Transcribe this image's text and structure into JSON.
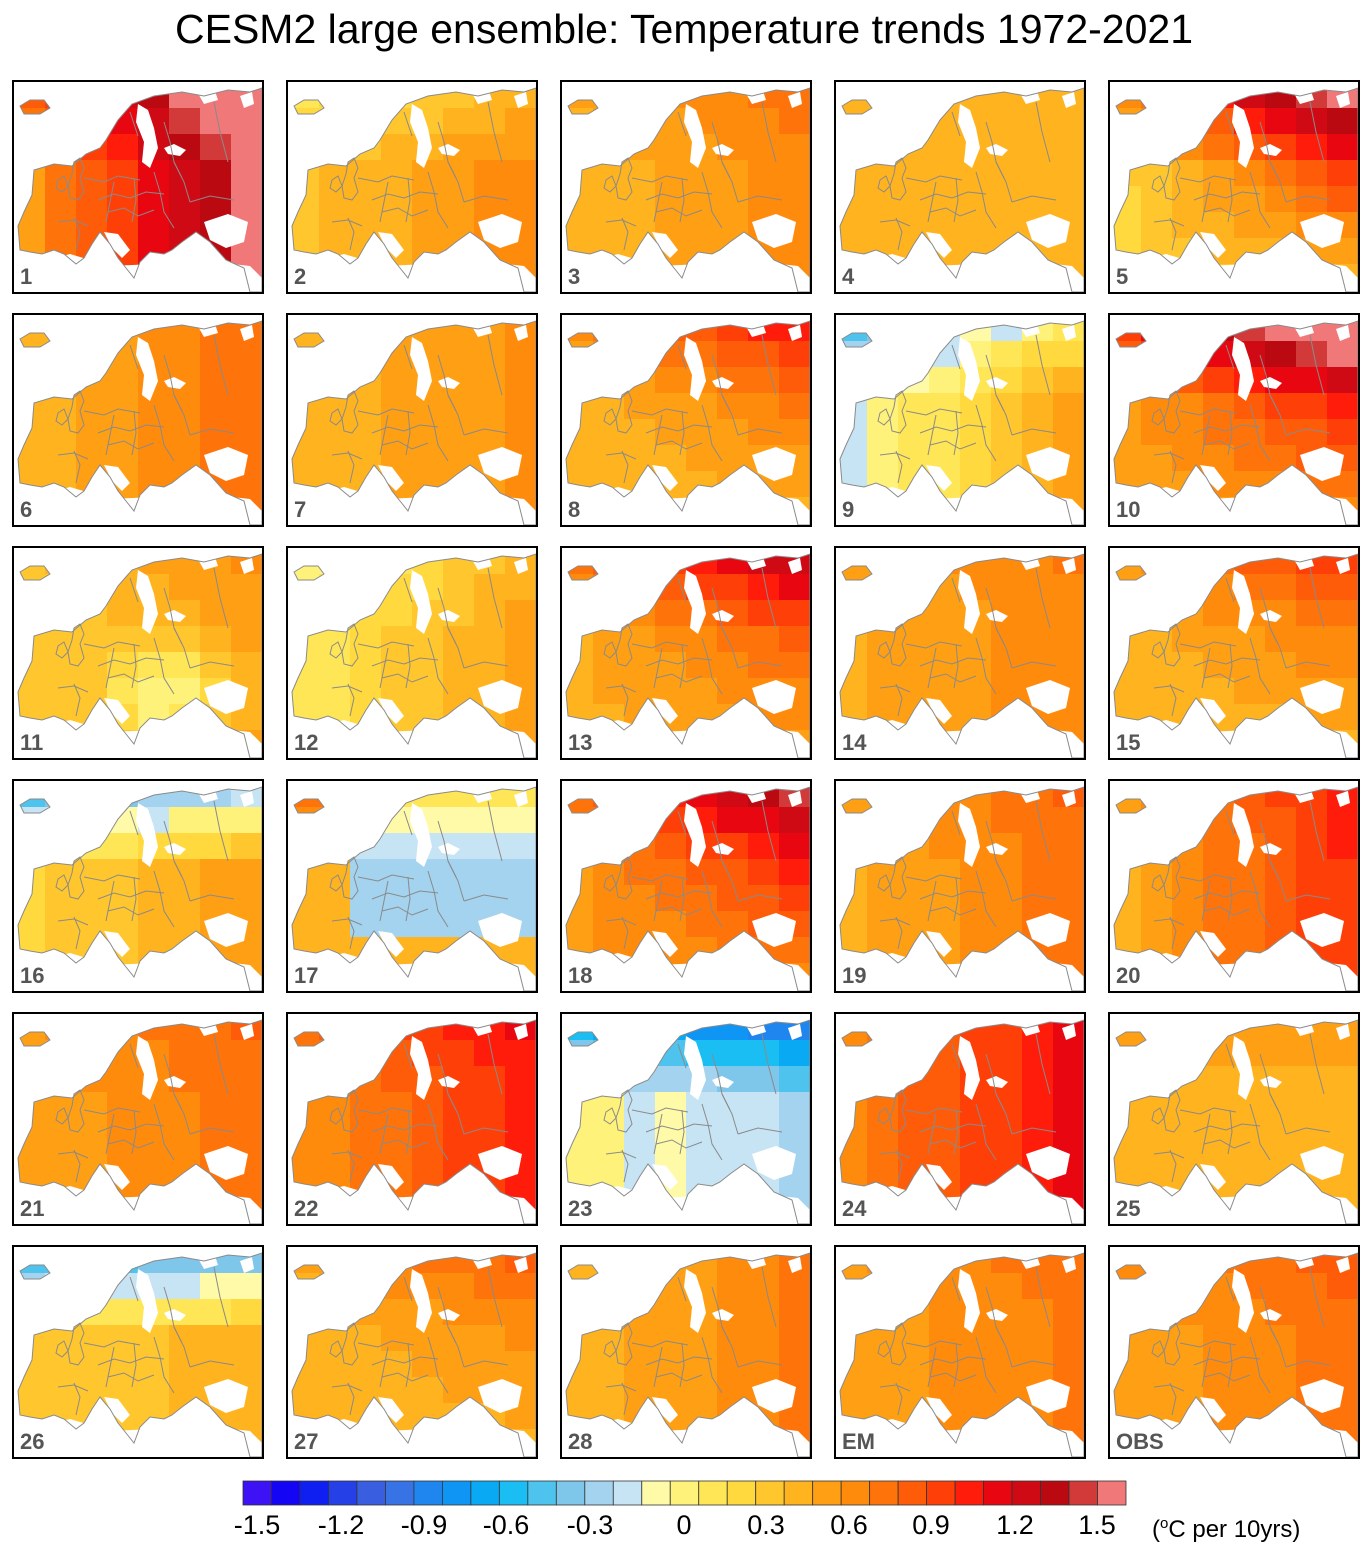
{
  "title": "CESM2 large ensemble: Temperature trends 1972-2021",
  "chart_data": {
    "type": "heatmap",
    "title": "CESM2 large ensemble: Temperature trends 1972-2021",
    "panels": [
      {
        "label": "1",
        "pattern": "east",
        "base": 0.45,
        "amp": 1.05,
        "north": 0.25
      },
      {
        "label": "2",
        "pattern": "east",
        "base": 0.3,
        "amp": 0.3,
        "north": -0.2
      },
      {
        "label": "3",
        "pattern": "east",
        "base": 0.35,
        "amp": 0.25,
        "north": 0.1
      },
      {
        "label": "4",
        "pattern": "uniform",
        "base": 0.3,
        "amp": 0.1,
        "north": 0.0
      },
      {
        "label": "5",
        "pattern": "northeast",
        "base": 0.2,
        "amp": 1.15,
        "north": 0.3
      },
      {
        "label": "6",
        "pattern": "east",
        "base": 0.35,
        "amp": 0.35,
        "north": 0.0
      },
      {
        "label": "7",
        "pattern": "east",
        "base": 0.35,
        "amp": 0.2,
        "north": 0.0
      },
      {
        "label": "8",
        "pattern": "northeast",
        "base": 0.35,
        "amp": 0.5,
        "north": 0.2
      },
      {
        "label": "9",
        "pattern": "west_cold",
        "base": 0.15,
        "amp": 0.4,
        "north": -0.35
      },
      {
        "label": "10",
        "pattern": "northeast",
        "base": 0.45,
        "amp": 0.9,
        "north": 0.4
      },
      {
        "label": "11",
        "pattern": "south_cold",
        "base": 0.25,
        "amp": 0.25,
        "north": 0.05
      },
      {
        "label": "12",
        "pattern": "west_cold",
        "base": 0.25,
        "amp": 0.3,
        "north": -0.1
      },
      {
        "label": "13",
        "pattern": "northeast",
        "base": 0.4,
        "amp": 0.6,
        "north": 0.25
      },
      {
        "label": "14",
        "pattern": "east",
        "base": 0.4,
        "amp": 0.2,
        "north": 0.05
      },
      {
        "label": "15",
        "pattern": "northeast",
        "base": 0.35,
        "amp": 0.45,
        "north": 0.15
      },
      {
        "label": "16",
        "pattern": "north_cold",
        "base": 0.2,
        "amp": 0.3,
        "north": -0.45
      },
      {
        "label": "17",
        "pattern": "center_cold",
        "base": 0.1,
        "amp": 0.4,
        "north": 0.3
      },
      {
        "label": "18",
        "pattern": "northeast",
        "base": 0.5,
        "amp": 0.75,
        "north": 0.15
      },
      {
        "label": "19",
        "pattern": "east",
        "base": 0.4,
        "amp": 0.3,
        "north": 0.05
      },
      {
        "label": "20",
        "pattern": "east",
        "base": 0.4,
        "amp": 0.55,
        "north": 0.05
      },
      {
        "label": "21",
        "pattern": "east",
        "base": 0.45,
        "amp": 0.25,
        "north": 0.05
      },
      {
        "label": "22",
        "pattern": "east",
        "base": 0.55,
        "amp": 0.4,
        "north": 0.1
      },
      {
        "label": "23",
        "pattern": "cold",
        "base": -0.1,
        "amp": 0.3,
        "north": -0.4
      },
      {
        "label": "24",
        "pattern": "east",
        "base": 0.6,
        "amp": 0.45,
        "north": 0.0
      },
      {
        "label": "25",
        "pattern": "uniform",
        "base": 0.3,
        "amp": 0.15,
        "north": 0.1
      },
      {
        "label": "26",
        "pattern": "north_cold",
        "base": 0.25,
        "amp": 0.15,
        "north": -0.5
      },
      {
        "label": "27",
        "pattern": "northeast",
        "base": 0.35,
        "amp": 0.35,
        "north": 0.1
      },
      {
        "label": "28",
        "pattern": "east",
        "base": 0.35,
        "amp": 0.3,
        "north": 0.0
      },
      {
        "label": "EM",
        "pattern": "east",
        "base": 0.45,
        "amp": 0.2,
        "north": 0.05
      },
      {
        "label": "OBS",
        "pattern": "east",
        "base": 0.45,
        "amp": 0.25,
        "north": 0.1
      }
    ],
    "colorbar": {
      "colors": [
        "#3d12f5",
        "#1505f5",
        "#0f1ff2",
        "#2540e6",
        "#3a5ee0",
        "#3873e6",
        "#1f86ef",
        "#0f96f5",
        "#0aa9f4",
        "#1bbef3",
        "#4dc3ee",
        "#7fc6eb",
        "#a4d3ef",
        "#c7e4f5",
        "#fffaa8",
        "#fff27a",
        "#ffe656",
        "#ffd93d",
        "#ffc72d",
        "#ffb31f",
        "#ff9f14",
        "#ff8b0c",
        "#ff740a",
        "#ff5c09",
        "#ff3f08",
        "#ff1c0a",
        "#e80610",
        "#d00a14",
        "#bb0912",
        "#d23a3a",
        "#f07878"
      ],
      "ticks": [
        "-1.5",
        "-1.2",
        "-0.9",
        "-0.6",
        "-0.3",
        "0",
        "0.3",
        "0.6",
        "0.9",
        "1.2",
        "1.5"
      ],
      "range": [
        -1.5,
        1.5
      ],
      "units_prefix": "(",
      "units_sup": "o",
      "units_suffix": "C per 10yrs)"
    }
  }
}
